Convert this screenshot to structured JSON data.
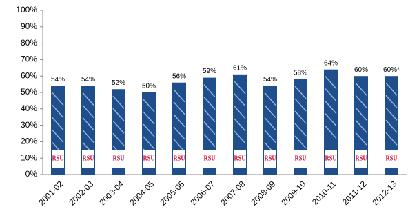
{
  "chart_data": {
    "type": "bar",
    "categories": [
      "2001-02",
      "2002-03",
      "2003-04",
      "2004-05",
      "2005-06",
      "2006-07",
      "2007-08",
      "2008-09",
      "2009-10",
      "2010-11",
      "2011-12",
      "2012-13"
    ],
    "values": [
      54,
      54,
      52,
      50,
      56,
      59,
      61,
      54,
      58,
      64,
      60,
      60
    ],
    "value_labels": [
      "54%",
      "54%",
      "52%",
      "50%",
      "56%",
      "59%",
      "61%",
      "54%",
      "58%",
      "64%",
      "60%",
      "60%*"
    ],
    "bar_logo": "RSU",
    "color": "#1f4e8c",
    "ylim": [
      0,
      100
    ],
    "yticks": [
      {
        "value": 0,
        "label": "0%"
      },
      {
        "value": 10,
        "label": "10%"
      },
      {
        "value": 20,
        "label": "20%"
      },
      {
        "value": 30,
        "label": "30%"
      },
      {
        "value": 40,
        "label": "40%"
      },
      {
        "value": 50,
        "label": "50%"
      },
      {
        "value": 60,
        "label": "60%"
      },
      {
        "value": 70,
        "label": "70%"
      },
      {
        "value": 80,
        "label": "80%"
      },
      {
        "value": 90,
        "label": "90%"
      },
      {
        "value": 100,
        "label": "100%"
      }
    ]
  }
}
